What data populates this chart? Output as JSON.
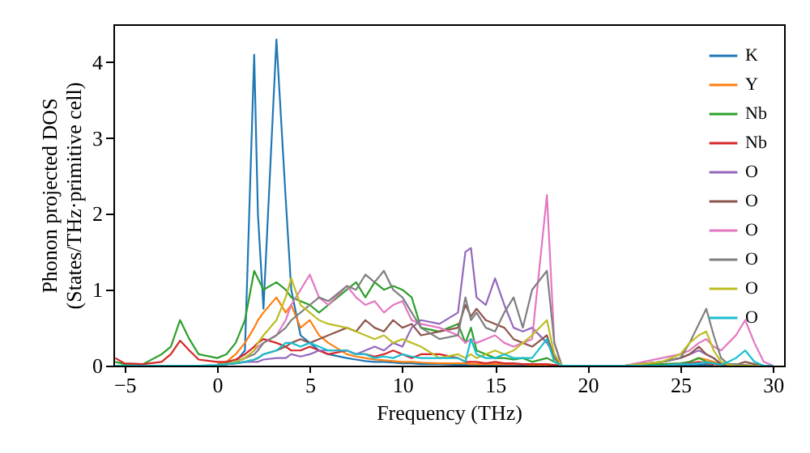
{
  "chart_data": {
    "type": "line",
    "xlabel": "Frequency (THz)",
    "ylabel": "Phonon projected DOS\n(States/THz·primitive cell)",
    "xlim": [
      -5.6,
      30.6
    ],
    "ylim": [
      0,
      4.5
    ],
    "xticks": [
      {
        "value": -5,
        "label": "−5"
      },
      0,
      5,
      10,
      15,
      20,
      25,
      30
    ],
    "yticks": [
      0,
      1,
      2,
      3,
      4
    ],
    "grid": false,
    "legend": "top right",
    "line_style": "solid",
    "marker": "none",
    "x": [
      -5.5,
      -5,
      -4,
      -3,
      -2.5,
      -2,
      -1.5,
      -1,
      0,
      0.5,
      1,
      1.5,
      2,
      2.2,
      2.5,
      3.2,
      3.7,
      4,
      4.5,
      5,
      5.5,
      6,
      7,
      7.5,
      8,
      8.5,
      9,
      9.5,
      10,
      10.5,
      11,
      12,
      13,
      13.4,
      13.7,
      14,
      14.5,
      15,
      15.5,
      16,
      16.5,
      17,
      17.8,
      18.2,
      18.6,
      19,
      22,
      24,
      25,
      25.5,
      26,
      26.4,
      26.8,
      27.2,
      27.6,
      28,
      28.5,
      29,
      29.5,
      30
    ],
    "series": [
      {
        "name": "K",
        "color": "#1f77b4",
        "values": [
          null,
          null,
          null,
          null,
          null,
          null,
          null,
          null,
          0.02,
          0.03,
          0.05,
          0.2,
          4.1,
          2.0,
          0.75,
          4.3,
          2.2,
          1.0,
          0.4,
          0.3,
          0.2,
          0.15,
          0.1,
          0.08,
          0.06,
          0.05,
          0.05,
          0.04,
          0.03,
          0.03,
          0.02,
          0.02,
          0.01,
          0.01,
          0.01,
          0.01,
          0.01,
          0.01,
          0.01,
          0.01,
          0.01,
          0.01,
          0.01,
          0,
          0,
          0,
          0,
          0,
          0,
          0,
          0.01,
          0.01,
          0,
          null,
          null,
          null,
          null,
          null,
          null,
          null
        ]
      },
      {
        "name": "Y",
        "color": "#ff7f0e",
        "values": [
          null,
          null,
          null,
          null,
          null,
          null,
          null,
          null,
          0.02,
          0.05,
          0.15,
          0.3,
          0.5,
          0.6,
          0.7,
          0.9,
          0.7,
          0.8,
          0.5,
          0.6,
          0.4,
          0.3,
          0.15,
          0.12,
          0.1,
          0.08,
          0.07,
          0.06,
          0.05,
          0.05,
          0.04,
          0.03,
          0.03,
          0.03,
          0.02,
          0.02,
          0.02,
          0.02,
          0.02,
          0.02,
          0.02,
          0.01,
          0.01,
          0,
          0,
          0,
          0,
          0,
          0.02,
          0.05,
          0.1,
          0.08,
          0.05,
          0.02,
          0.01,
          null,
          null,
          null,
          null,
          null
        ]
      },
      {
        "name": "Nb",
        "color": "#2ca02c",
        "values": [
          0.05,
          0.02,
          0.02,
          0.15,
          0.25,
          0.6,
          0.35,
          0.15,
          0.1,
          0.15,
          0.3,
          0.6,
          1.25,
          1.15,
          1.0,
          1.1,
          1.0,
          0.9,
          0.85,
          0.8,
          0.7,
          0.8,
          1.0,
          1.1,
          0.9,
          1.1,
          1.0,
          1.05,
          1.0,
          0.9,
          0.5,
          0.45,
          0.55,
          0.3,
          0.5,
          0.2,
          0.15,
          0.1,
          0.1,
          0.08,
          0.1,
          0.05,
          0.1,
          0.05,
          0,
          0,
          0,
          0.02,
          0.03,
          0.05,
          0.1,
          0.05,
          0.03,
          0.01,
          0,
          null,
          null,
          null,
          null,
          null
        ]
      },
      {
        "name": "Nb",
        "color": "#d62728",
        "values": [
          0.1,
          0.03,
          0.02,
          0.05,
          0.15,
          0.33,
          0.2,
          0.08,
          0.05,
          0.05,
          0.08,
          0.15,
          0.25,
          0.3,
          0.35,
          0.3,
          0.25,
          0.2,
          0.2,
          0.25,
          0.2,
          0.15,
          0.2,
          0.15,
          0.15,
          0.12,
          0.15,
          0.2,
          0.15,
          0.1,
          0.15,
          0.15,
          0.1,
          0.05,
          0.05,
          0.05,
          0.03,
          0.05,
          0.03,
          0.03,
          0.02,
          0.02,
          0.02,
          0.01,
          0,
          0,
          0,
          0,
          0.02,
          0.03,
          0.05,
          0.03,
          0.02,
          0.01,
          0,
          null,
          null,
          null,
          null,
          null
        ]
      },
      {
        "name": "O",
        "color": "#9467bd",
        "values": [
          null,
          null,
          null,
          null,
          null,
          null,
          null,
          null,
          0.01,
          0.02,
          0.03,
          0.05,
          0.05,
          0.05,
          0.08,
          0.1,
          0.1,
          0.15,
          0.12,
          0.15,
          0.2,
          0.2,
          0.2,
          0.15,
          0.2,
          0.25,
          0.2,
          0.3,
          0.25,
          0.5,
          0.6,
          0.55,
          0.7,
          1.5,
          1.55,
          0.9,
          0.8,
          1.15,
          0.8,
          0.5,
          0.45,
          0.5,
          0.3,
          0.15,
          0,
          0,
          0,
          0.05,
          0.1,
          0.15,
          0.2,
          0.15,
          0.1,
          0.02,
          0,
          0,
          0,
          0,
          0,
          0
        ]
      },
      {
        "name": "O",
        "color": "#8c564b",
        "values": [
          null,
          null,
          null,
          null,
          null,
          null,
          null,
          null,
          0.01,
          0.02,
          0.03,
          0.05,
          0.08,
          0.1,
          0.15,
          0.2,
          0.25,
          0.3,
          0.35,
          0.3,
          0.35,
          0.4,
          0.5,
          0.45,
          0.6,
          0.5,
          0.45,
          0.6,
          0.5,
          0.55,
          0.4,
          0.45,
          0.5,
          0.8,
          0.65,
          0.75,
          0.6,
          0.55,
          0.5,
          0.35,
          0.3,
          0.25,
          0.4,
          0.1,
          0,
          0,
          0,
          0.05,
          0.1,
          0.15,
          0.25,
          0.15,
          0.1,
          0.02,
          0,
          0.01,
          0.05,
          0.02,
          0,
          0
        ]
      },
      {
        "name": "O",
        "color": "#e377c2",
        "values": [
          null,
          null,
          null,
          null,
          null,
          null,
          null,
          null,
          0.01,
          0.02,
          0.05,
          0.1,
          0.2,
          0.25,
          0.3,
          0.4,
          0.6,
          0.8,
          1.0,
          1.2,
          0.9,
          0.8,
          1.05,
          0.9,
          0.8,
          0.85,
          0.7,
          0.8,
          0.85,
          0.6,
          0.55,
          0.5,
          0.4,
          0.3,
          0.35,
          0.3,
          0.35,
          0.4,
          0.3,
          0.25,
          0.3,
          0.35,
          2.25,
          0.3,
          0,
          0,
          0,
          0.1,
          0.15,
          0.2,
          0.3,
          0.35,
          0.25,
          0.2,
          0.3,
          0.4,
          0.6,
          0.3,
          0.05,
          0
        ]
      },
      {
        "name": "O",
        "color": "#7f7f7f",
        "values": [
          null,
          null,
          null,
          null,
          null,
          null,
          null,
          null,
          0.01,
          0.02,
          0.05,
          0.1,
          0.15,
          0.2,
          0.3,
          0.4,
          0.5,
          0.6,
          0.7,
          0.8,
          0.9,
          0.85,
          1.05,
          1.0,
          1.2,
          1.1,
          1.25,
          1.0,
          0.9,
          0.7,
          0.5,
          0.35,
          0.4,
          0.9,
          0.6,
          0.7,
          0.5,
          0.45,
          0.7,
          0.9,
          0.5,
          1.0,
          1.25,
          0.3,
          0,
          0,
          0,
          0.05,
          0.1,
          0.3,
          0.55,
          0.75,
          0.4,
          0.1,
          0.02,
          0.02,
          0.01,
          0,
          0,
          0
        ]
      },
      {
        "name": "O",
        "color": "#bcbd22",
        "values": [
          null,
          null,
          null,
          null,
          null,
          null,
          null,
          null,
          0.01,
          0.02,
          0.05,
          0.1,
          0.2,
          0.3,
          0.4,
          0.6,
          0.9,
          1.15,
          0.8,
          0.7,
          0.6,
          0.55,
          0.5,
          0.45,
          0.4,
          0.35,
          0.4,
          0.3,
          0.35,
          0.3,
          0.25,
          0.1,
          0.15,
          0.1,
          0.15,
          0.1,
          0.15,
          0.2,
          0.15,
          0.2,
          0.3,
          0.4,
          0.6,
          0.15,
          0,
          0,
          0,
          0.05,
          0.15,
          0.3,
          0.4,
          0.45,
          0.2,
          0.05,
          0.01,
          0,
          0,
          0,
          0,
          0
        ]
      },
      {
        "name": "O",
        "color": "#17becf",
        "values": [
          0,
          0,
          0,
          0,
          0,
          0,
          0,
          0,
          0.01,
          0.02,
          0.03,
          0.05,
          0.08,
          0.1,
          0.15,
          0.2,
          0.3,
          0.3,
          0.25,
          0.3,
          0.25,
          0.2,
          0.2,
          0.15,
          0.15,
          0.1,
          0.12,
          0.1,
          0.15,
          0.12,
          0.1,
          0.1,
          0.1,
          0.05,
          0.35,
          0.15,
          0.1,
          0.1,
          0.15,
          0.1,
          0.1,
          0.1,
          0.35,
          0.05,
          0,
          0,
          0,
          0,
          0.02,
          0.02,
          0.03,
          0.04,
          0.03,
          0.01,
          0.05,
          0.1,
          0.2,
          0.05,
          0,
          0
        ]
      }
    ]
  }
}
